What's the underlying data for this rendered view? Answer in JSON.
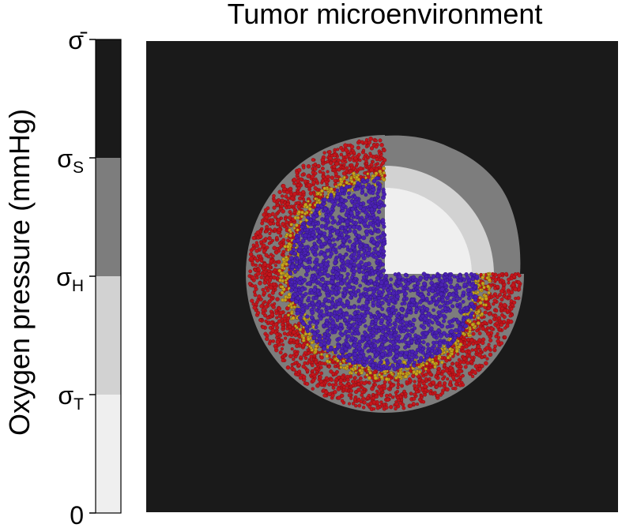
{
  "title": "Tumor microenvironment",
  "colorbar": {
    "axis_label": "Oxygen pressure (mmHg)",
    "levels": [
      {
        "tick_base": "σ̄",
        "tick_sub": "",
        "color": "#1a1a1a"
      },
      {
        "tick_base": "σ",
        "tick_sub": "S",
        "color": "#7d7d7d"
      },
      {
        "tick_base": "σ",
        "tick_sub": "H",
        "color": "#d2d2d2"
      },
      {
        "tick_base": "σ",
        "tick_sub": "T",
        "color": "#efefef"
      },
      {
        "tick_base": "0",
        "tick_sub": "",
        "color": ""
      }
    ]
  },
  "cell_colors": {
    "necrotic": "#4b22b4",
    "hypoxic": "#c9a31d",
    "proliferating": "#c4161c",
    "background": "#1a1a1a"
  }
}
